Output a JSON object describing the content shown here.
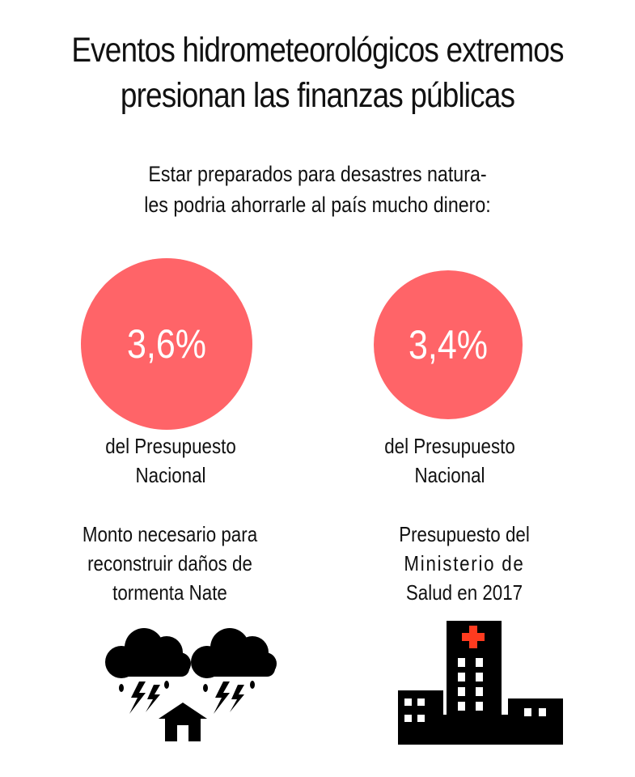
{
  "title": {
    "line1": "Eventos hidrometeorológicos extremos",
    "line2": "presionan las finanzas públicas"
  },
  "subtitle": {
    "line1": "Estar preparados para desastres natura-",
    "line2": "les podria ahorrarle al país mucho dinero:"
  },
  "stats": [
    {
      "value": "3,6%",
      "label_line1": "del Presupuesto",
      "label_line2": "Nacional",
      "desc_line1": "Monto necesario para",
      "desc_line2": "reconstruir daños de",
      "desc_line3": "tormenta Nate",
      "icon": "storm-house-icon"
    },
    {
      "value": "3,4%",
      "label_line1": "del Presupuesto",
      "label_line2": "Nacional",
      "desc_line1": "Presupuesto del",
      "desc_line2": "Ministerio de",
      "desc_line3": "Salud en 2017",
      "icon": "hospital-icon"
    }
  ],
  "colors": {
    "circle": "#ff6468",
    "icon": "#000000",
    "cross": "#ff3b1f"
  }
}
